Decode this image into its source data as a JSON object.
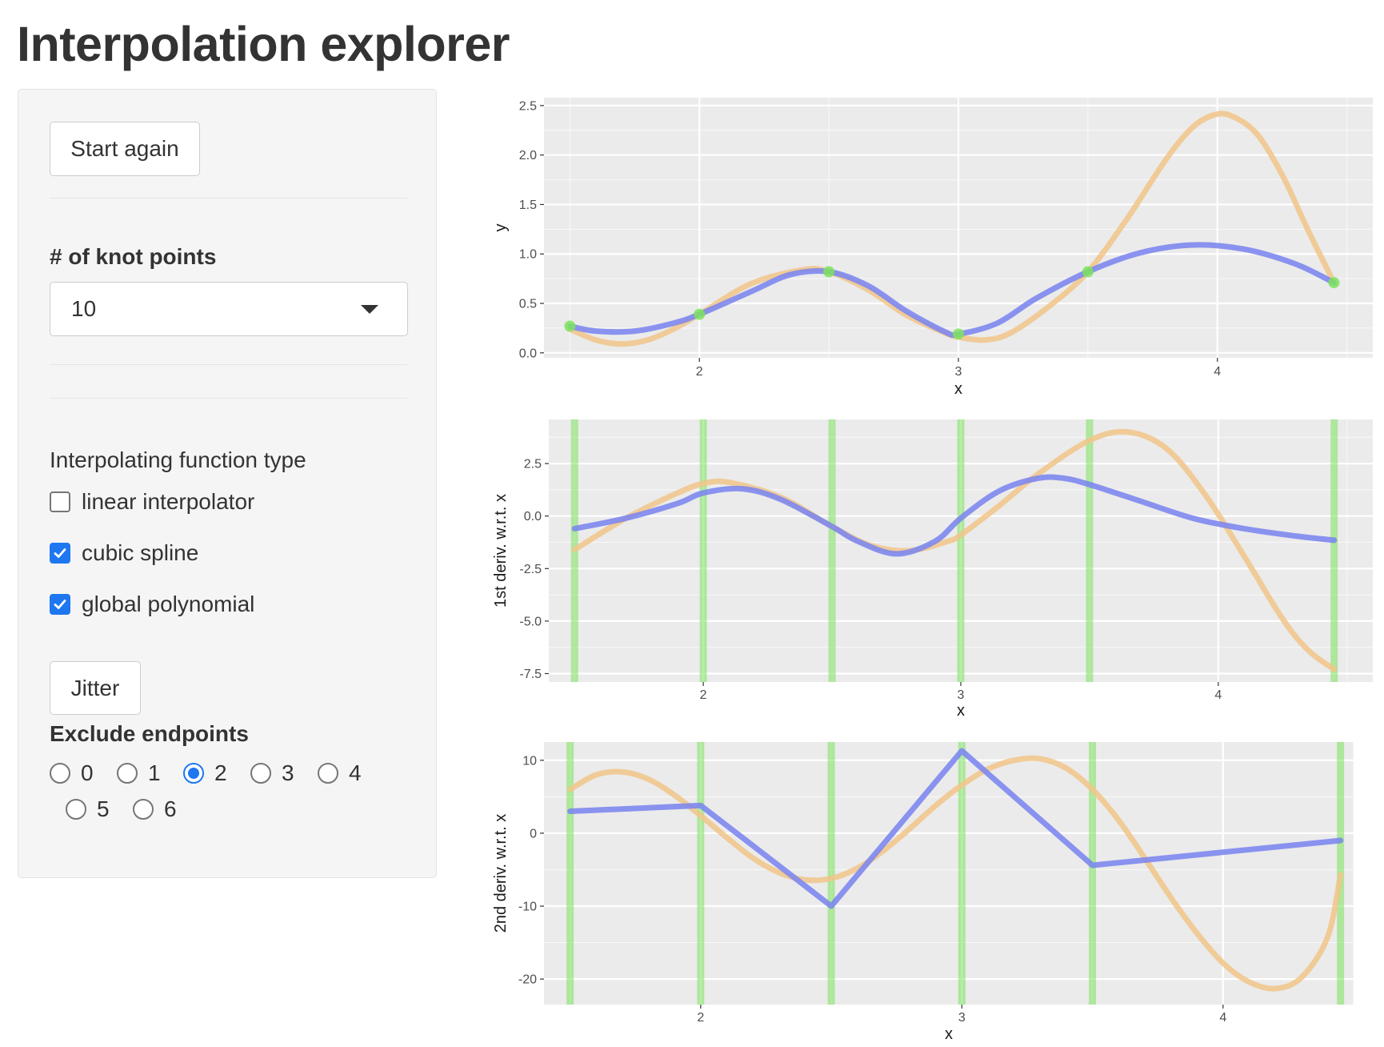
{
  "page": {
    "title": "Interpolation explorer"
  },
  "sidebar": {
    "start_again_label": "Start again",
    "knots": {
      "label": "# of knot points",
      "value": "10"
    },
    "function_type": {
      "label": "Interpolating function type",
      "options": [
        {
          "label": "linear interpolator",
          "checked": false
        },
        {
          "label": "cubic spline",
          "checked": true
        },
        {
          "label": "global polynomial",
          "checked": true
        }
      ]
    },
    "jitter_label": "Jitter",
    "exclude_endpoints": {
      "label": "Exclude endpoints",
      "options": [
        "0",
        "1",
        "2",
        "3",
        "4",
        "5",
        "6"
      ],
      "selected": "2"
    }
  },
  "colors": {
    "spline": "#7b85ee",
    "polynomial": "#f1c58a",
    "knots": "#7ce35d",
    "panel_bg": "#ebebeb",
    "grid": "#ffffff"
  },
  "chart_data": [
    {
      "type": "line",
      "xlabel": "x",
      "ylabel": "y",
      "xlim": [
        1.4,
        4.6
      ],
      "ylim": [
        -0.05,
        2.58
      ],
      "xticks": [
        2,
        3,
        4
      ],
      "yticks": [
        0.0,
        0.5,
        1.0,
        1.5,
        2.0,
        2.5
      ],
      "ytick_labels": [
        "0.0",
        "0.5",
        "1.0",
        "1.5",
        "2.0",
        "2.5"
      ],
      "knots": {
        "x": [
          1.5,
          2.0,
          2.5,
          3.0,
          3.5,
          4.45
        ],
        "y": [
          0.27,
          0.39,
          0.82,
          0.19,
          0.82,
          0.71
        ]
      },
      "series": [
        {
          "x": [
            1.5,
            1.6,
            1.75,
            1.9,
            2.0,
            2.2,
            2.35,
            2.5,
            2.65,
            2.8,
            2.95,
            3.0,
            3.15,
            3.3,
            3.5,
            3.7,
            3.9,
            4.1,
            4.3,
            4.45
          ],
          "y": [
            0.27,
            0.22,
            0.22,
            0.3,
            0.39,
            0.62,
            0.79,
            0.82,
            0.68,
            0.42,
            0.21,
            0.19,
            0.3,
            0.55,
            0.82,
            1.01,
            1.09,
            1.05,
            0.9,
            0.71
          ]
        },
        {
          "x": [
            1.5,
            1.6,
            1.7,
            1.8,
            1.9,
            2.0,
            2.2,
            2.4,
            2.5,
            2.65,
            2.8,
            2.95,
            3.0,
            3.1,
            3.2,
            3.35,
            3.5,
            3.65,
            3.8,
            3.9,
            3.98,
            4.05,
            4.15,
            4.25,
            4.35,
            4.45
          ],
          "y": [
            0.24,
            0.13,
            0.09,
            0.13,
            0.24,
            0.39,
            0.7,
            0.84,
            0.82,
            0.64,
            0.38,
            0.2,
            0.16,
            0.13,
            0.2,
            0.47,
            0.82,
            1.35,
            1.95,
            2.27,
            2.4,
            2.4,
            2.22,
            1.8,
            1.24,
            0.71
          ]
        }
      ]
    },
    {
      "type": "line",
      "xlabel": "x",
      "ylabel": "1st deriv. w.r.t. x",
      "xlim": [
        1.4,
        4.6
      ],
      "ylim": [
        -7.9,
        4.6
      ],
      "xticks": [
        2,
        3,
        4
      ],
      "yticks": [
        2.5,
        0.0,
        -2.5,
        -5.0,
        -7.5
      ],
      "ytick_labels": [
        "2.5",
        "0.0",
        "-2.5",
        "-5.0",
        "-7.5"
      ],
      "knots": {
        "x": [
          1.5,
          2.0,
          2.5,
          3.0,
          3.5,
          4.45
        ]
      },
      "series": [
        {
          "x": [
            1.5,
            1.7,
            1.9,
            2.0,
            2.15,
            2.3,
            2.5,
            2.6,
            2.75,
            2.9,
            3.0,
            3.15,
            3.3,
            3.4,
            3.5,
            3.7,
            3.9,
            4.1,
            4.3,
            4.45
          ],
          "y": [
            -0.6,
            -0.1,
            0.6,
            1.1,
            1.3,
            0.8,
            -0.5,
            -1.2,
            -1.8,
            -1.2,
            -0.1,
            1.2,
            1.8,
            1.8,
            1.5,
            0.7,
            -0.1,
            -0.6,
            -0.95,
            -1.15
          ]
        },
        {
          "x": [
            1.5,
            1.7,
            1.9,
            2.0,
            2.1,
            2.3,
            2.5,
            2.65,
            2.8,
            2.95,
            3.0,
            3.15,
            3.3,
            3.5,
            3.65,
            3.8,
            3.95,
            4.1,
            4.25,
            4.35,
            4.45
          ],
          "y": [
            -1.6,
            -0.1,
            1.1,
            1.55,
            1.6,
            0.9,
            -0.5,
            -1.4,
            -1.65,
            -1.2,
            -0.9,
            0.5,
            2.0,
            3.6,
            4.0,
            3.2,
            1.0,
            -1.9,
            -4.9,
            -6.4,
            -7.3
          ]
        }
      ]
    },
    {
      "type": "line",
      "xlabel": "x",
      "ylabel": "2nd deriv. w.r.t. x",
      "xlim": [
        1.4,
        4.5
      ],
      "ylim": [
        -23.5,
        12.5
      ],
      "xticks": [
        2,
        3,
        4
      ],
      "yticks": [
        10,
        0,
        -10,
        -20
      ],
      "ytick_labels": [
        "10",
        "0",
        "-10",
        "-20"
      ],
      "knots": {
        "x": [
          1.5,
          2.0,
          2.5,
          3.0,
          3.5,
          4.45
        ]
      },
      "series": [
        {
          "x": [
            1.5,
            2.0,
            2.5,
            3.0,
            3.5,
            4.45
          ],
          "y": [
            3.0,
            3.8,
            -10.0,
            11.3,
            -4.4,
            -1.0
          ]
        },
        {
          "x": [
            1.5,
            1.6,
            1.7,
            1.8,
            1.9,
            2.0,
            2.1,
            2.2,
            2.3,
            2.4,
            2.5,
            2.6,
            2.7,
            2.8,
            2.9,
            3.0,
            3.1,
            3.2,
            3.3,
            3.4,
            3.5,
            3.6,
            3.7,
            3.8,
            3.9,
            4.0,
            4.1,
            4.2,
            4.3,
            4.4,
            4.45
          ],
          "y": [
            6.0,
            8.0,
            8.4,
            7.4,
            5.2,
            2.4,
            -0.6,
            -3.4,
            -5.4,
            -6.4,
            -6.2,
            -4.8,
            -2.4,
            0.6,
            3.8,
            6.6,
            8.8,
            10.0,
            10.2,
            8.9,
            6.0,
            1.8,
            -3.4,
            -8.8,
            -13.7,
            -17.8,
            -20.4,
            -21.3,
            -19.8,
            -14.3,
            -5.7
          ]
        }
      ]
    }
  ]
}
